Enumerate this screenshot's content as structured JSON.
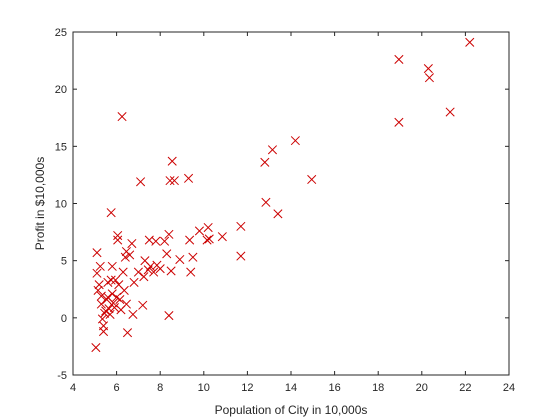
{
  "chart_data": {
    "type": "scatter",
    "title": "",
    "xlabel": "Population of City in 10,000s",
    "ylabel": "Profit in $10,000s",
    "xlim": [
      4,
      24
    ],
    "ylim": [
      -5,
      25
    ],
    "x_ticks": [
      "4",
      "6",
      "8",
      "10",
      "12",
      "14",
      "16",
      "18",
      "20",
      "22",
      "24"
    ],
    "y_ticks": [
      "-5",
      "0",
      "5",
      "10",
      "15",
      "20",
      "25"
    ],
    "grid": false,
    "legend": "none",
    "marker": "x",
    "colors": {
      "marker": "#cc0000",
      "axis": "#262626",
      "background": "#ffffff"
    },
    "series": [
      {
        "points": [
          [
            5.05,
            -2.6
          ],
          [
            5.1,
            5.7
          ],
          [
            5.1,
            3.9
          ],
          [
            5.2,
            2.9
          ],
          [
            5.15,
            2.4
          ],
          [
            5.25,
            4.5
          ],
          [
            5.3,
            1.9
          ],
          [
            5.3,
            1.2
          ],
          [
            5.35,
            -0.1
          ],
          [
            5.4,
            -0.7
          ],
          [
            5.4,
            -1.2
          ],
          [
            5.45,
            0.4
          ],
          [
            5.5,
            0.6
          ],
          [
            5.55,
            1.6
          ],
          [
            5.6,
            3.1
          ],
          [
            5.6,
            1.8
          ],
          [
            5.65,
            0.8
          ],
          [
            5.7,
            0.3
          ],
          [
            5.75,
            3.3
          ],
          [
            5.75,
            9.2
          ],
          [
            5.8,
            4.5
          ],
          [
            5.8,
            2.1
          ],
          [
            5.85,
            1.3
          ],
          [
            5.9,
            0.9
          ],
          [
            5.95,
            3.3
          ],
          [
            6.0,
            1.8
          ],
          [
            6.05,
            7.2
          ],
          [
            6.05,
            6.8
          ],
          [
            6.1,
            2.9
          ],
          [
            6.15,
            1.6
          ],
          [
            6.2,
            0.7
          ],
          [
            6.25,
            17.6
          ],
          [
            6.3,
            4.0
          ],
          [
            6.35,
            2.4
          ],
          [
            6.4,
            5.3
          ],
          [
            6.45,
            5.8
          ],
          [
            6.45,
            1.2
          ],
          [
            6.5,
            -1.3
          ],
          [
            6.6,
            5.5
          ],
          [
            6.7,
            6.5
          ],
          [
            6.75,
            0.3
          ],
          [
            6.8,
            3.1
          ],
          [
            7.0,
            4.0
          ],
          [
            7.1,
            11.9
          ],
          [
            7.2,
            1.1
          ],
          [
            7.25,
            3.6
          ],
          [
            7.3,
            5.0
          ],
          [
            7.45,
            4.2
          ],
          [
            7.5,
            6.8
          ],
          [
            7.55,
            4.5
          ],
          [
            7.7,
            4.0
          ],
          [
            7.8,
            6.7
          ],
          [
            7.85,
            4.6
          ],
          [
            8.0,
            4.3
          ],
          [
            8.2,
            6.7
          ],
          [
            8.3,
            5.6
          ],
          [
            8.4,
            0.2
          ],
          [
            8.4,
            7.3
          ],
          [
            8.45,
            12.0
          ],
          [
            8.5,
            4.1
          ],
          [
            8.55,
            13.7
          ],
          [
            8.65,
            12.0
          ],
          [
            8.9,
            5.1
          ],
          [
            9.3,
            12.2
          ],
          [
            9.35,
            6.8
          ],
          [
            9.4,
            4.0
          ],
          [
            9.5,
            5.3
          ],
          [
            9.8,
            7.6
          ],
          [
            10.15,
            6.8
          ],
          [
            10.2,
            7.9
          ],
          [
            10.25,
            6.9
          ],
          [
            10.85,
            7.1
          ],
          [
            11.7,
            8.0
          ],
          [
            11.7,
            5.4
          ],
          [
            12.8,
            13.6
          ],
          [
            12.85,
            10.1
          ],
          [
            13.15,
            14.7
          ],
          [
            13.4,
            9.1
          ],
          [
            14.2,
            15.5
          ],
          [
            14.95,
            12.1
          ],
          [
            18.95,
            22.6
          ],
          [
            18.95,
            17.1
          ],
          [
            20.3,
            21.8
          ],
          [
            20.35,
            21.0
          ],
          [
            21.3,
            18.0
          ],
          [
            22.2,
            24.1
          ]
        ]
      }
    ]
  }
}
